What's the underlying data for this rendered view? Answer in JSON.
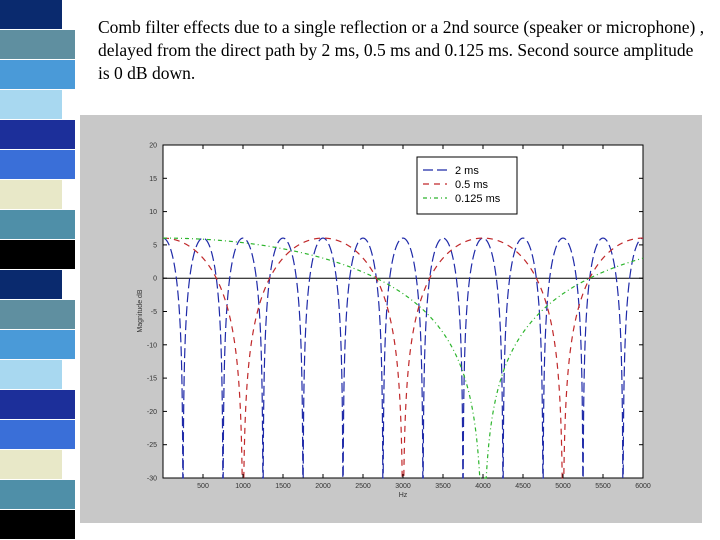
{
  "slide": {
    "caption": "Comb filter effects due to a single reflection or a 2nd source (speaker or microphone) , delayed from the direct path by 2 ms, 0.5 ms and 0.125 ms. Second source amplitude is 0 dB down.",
    "strip_colors": [
      "#3a6fd8",
      "#4f8fa8",
      "#0a2a6e",
      "#4a9ad8",
      "#1c2f9a",
      "#e8e8c8",
      "#000000",
      "#5f8fa0",
      "#a8d8f0"
    ]
  },
  "chart_data": {
    "type": "line",
    "title": "",
    "xlabel": "Hz",
    "ylabel": "Magnitude dB",
    "xlim": [
      0,
      6000
    ],
    "ylim": [
      -30,
      20
    ],
    "xticks": [
      500,
      1000,
      1500,
      2000,
      2500,
      3000,
      3500,
      4000,
      4500,
      5000,
      5500,
      6000
    ],
    "yticks": [
      20,
      15,
      10,
      5,
      0,
      -5,
      -10,
      -15,
      -20,
      -25,
      -30
    ],
    "grid": false,
    "legend_position": "top-right",
    "series": [
      {
        "name": "2 ms",
        "delay_ms": 2,
        "color": "#1f2aa8",
        "dash": "10 4",
        "gain": 1
      },
      {
        "name": "0.5 ms",
        "delay_ms": 0.5,
        "color": "#c0282a",
        "dash": "6 5",
        "gain": 1
      },
      {
        "name": "0.125 ms",
        "delay_ms": 0.125,
        "color": "#2db52d",
        "dash": "4 3 1 3",
        "gain": 1
      }
    ]
  }
}
